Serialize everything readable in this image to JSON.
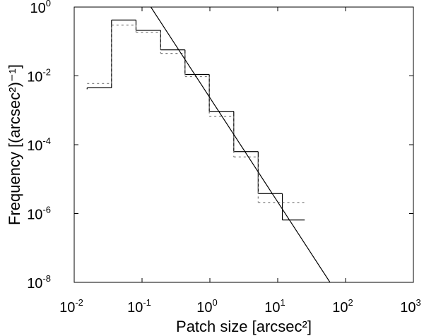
{
  "chart_data": {
    "type": "line",
    "x_scale": "log",
    "y_scale": "log",
    "xlabel": "Patch size [arcsec²]",
    "ylabel": "Frequency [(arcsec²)⁻¹]",
    "xlim": [
      0.01,
      1000
    ],
    "ylim": [
      1e-08,
      1
    ],
    "x_ticks": [
      {
        "value": 0.01,
        "label": "10",
        "exp": "-2"
      },
      {
        "value": 0.1,
        "label": "10",
        "exp": "-1"
      },
      {
        "value": 1,
        "label": "10",
        "exp": "0"
      },
      {
        "value": 10,
        "label": "10",
        "exp": "1"
      },
      {
        "value": 100,
        "label": "10",
        "exp": "2"
      },
      {
        "value": 1000,
        "label": "10",
        "exp": "3"
      }
    ],
    "y_ticks": [
      {
        "value": 1e-08,
        "label": "10",
        "exp": "-8"
      },
      {
        "value": 1e-06,
        "label": "10",
        "exp": "-6"
      },
      {
        "value": 0.0001,
        "label": "10",
        "exp": "-4"
      },
      {
        "value": 0.01,
        "label": "10",
        "exp": "-2"
      },
      {
        "value": 1,
        "label": "10",
        "exp": "0"
      }
    ],
    "grid": false,
    "series": [
      {
        "style": "solid-step",
        "color": "#000000",
        "bins": [
          {
            "x0": 0.0155,
            "x1": 0.0355,
            "y": 0.0045
          },
          {
            "x0": 0.0355,
            "x1": 0.0815,
            "y": 0.42
          },
          {
            "x0": 0.0815,
            "x1": 0.188,
            "y": 0.21
          },
          {
            "x0": 0.188,
            "x1": 0.43,
            "y": 0.057
          },
          {
            "x0": 0.43,
            "x1": 0.98,
            "y": 0.011
          },
          {
            "x0": 0.98,
            "x1": 2.25,
            "y": 0.00093
          },
          {
            "x0": 2.25,
            "x1": 5.15,
            "y": 6.3e-05
          },
          {
            "x0": 5.15,
            "x1": 11.7,
            "y": 3.8e-06
          },
          {
            "x0": 11.7,
            "x1": 25.0,
            "y": 6.5e-07
          }
        ]
      },
      {
        "style": "dashed-step",
        "color": "#777777",
        "bins": [
          {
            "x0": 0.0155,
            "x1": 0.0355,
            "y": 0.006
          },
          {
            "x0": 0.0355,
            "x1": 0.0815,
            "y": 0.3
          },
          {
            "x0": 0.0815,
            "x1": 0.188,
            "y": 0.185
          },
          {
            "x0": 0.188,
            "x1": 0.43,
            "y": 0.045
          },
          {
            "x0": 0.43,
            "x1": 0.98,
            "y": 0.0095
          },
          {
            "x0": 0.98,
            "x1": 2.25,
            "y": 0.00067
          },
          {
            "x0": 2.25,
            "x1": 5.15,
            "y": 4.4e-05
          },
          {
            "x0": 5.15,
            "x1": 11.7,
            "y": 2.1e-06
          },
          {
            "x0": 11.7,
            "x1": 25.0,
            "y": 2.1e-06
          }
        ]
      },
      {
        "style": "fit-line",
        "color": "#000000",
        "points": [
          {
            "x": 0.135,
            "y": 1.0
          },
          {
            "x": 59.0,
            "y": 1e-08
          }
        ]
      }
    ]
  }
}
